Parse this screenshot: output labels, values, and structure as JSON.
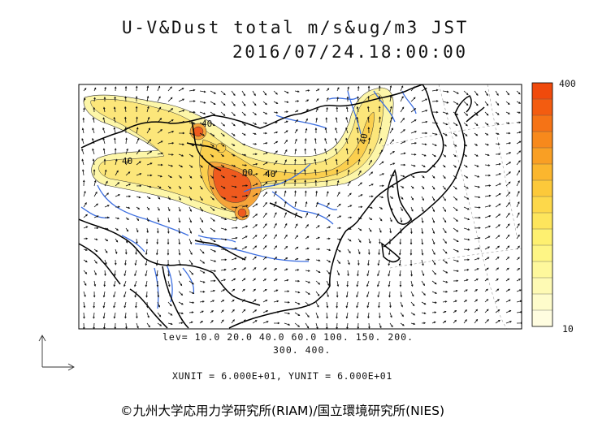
{
  "header": {
    "title": "U-V&Dust total m/s&ug/m3 JST",
    "datetime": "2016/07/24.18:00:00"
  },
  "contour_levels_line1": "lev= 10.0 20.0 40.0 60.0 100. 150. 200.",
  "contour_levels_line2": "300. 400.",
  "unit_line": "XUNIT = 6.000E+01, YUNIT = 6.000E+01",
  "credit": "©九州大学応用力学研究所(RIAM)/国立環境研究所(NIES)",
  "colorbar": {
    "max_label": "400",
    "min_label": "10",
    "colors": [
      "#f04a0c",
      "#f35c10",
      "#f57316",
      "#f7891c",
      "#f99f24",
      "#fbb62e",
      "#fcc93a",
      "#fdd84a",
      "#fde55c",
      "#fef070",
      "#fef585",
      "#fef89c",
      "#fefab4",
      "#fefccb",
      "#fffde0"
    ]
  },
  "map_labels": {
    "c1": "40",
    "c2": "40",
    "c3": "40",
    "c4": "00",
    "c5": "40"
  },
  "colors": {
    "river": "#3c6ee0",
    "coast": "#000000",
    "dust_light": "#fdf4a0",
    "dust_mid": "#fbd95a",
    "dust_high": "#f6a53a",
    "dust_peak": "#ef5a1e"
  }
}
